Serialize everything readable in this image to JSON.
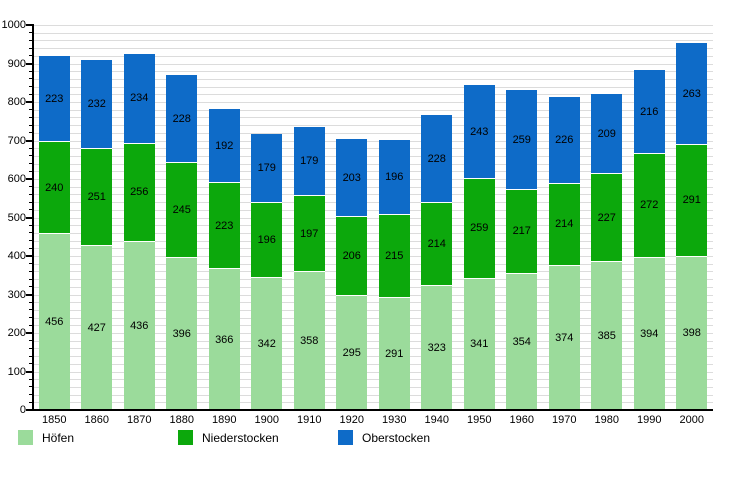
{
  "chart_data": {
    "type": "bar",
    "stacked": true,
    "title": "",
    "xlabel": "",
    "ylabel": "",
    "categories": [
      "1850",
      "1860",
      "1870",
      "1880",
      "1890",
      "1900",
      "1910",
      "1920",
      "1930",
      "1940",
      "1950",
      "1960",
      "1970",
      "1980",
      "1990",
      "2000"
    ],
    "series": [
      {
        "name": "Höfen",
        "color": "#9bdb9b",
        "values": [
          456,
          427,
          436,
          396,
          366,
          342,
          358,
          295,
          291,
          323,
          341,
          354,
          374,
          385,
          394,
          398
        ]
      },
      {
        "name": "Niederstocken",
        "color": "#0ca80c",
        "values": [
          240,
          251,
          256,
          245,
          223,
          196,
          197,
          206,
          215,
          214,
          259,
          217,
          214,
          227,
          272,
          291
        ]
      },
      {
        "name": "Oberstocken",
        "color": "#0e6bc8",
        "values": [
          223,
          232,
          234,
          228,
          192,
          179,
          179,
          203,
          196,
          228,
          243,
          259,
          226,
          209,
          216,
          263
        ]
      }
    ],
    "ylim": [
      0,
      1000
    ],
    "y_major_tick_step": 100,
    "y_minor_tick_step": 20,
    "grid": true,
    "grid_step": 20,
    "value_labels": true,
    "legend_position": "bottom"
  },
  "colors": {
    "grid": "#dcdcdc",
    "axis": "#000000",
    "text": "#000000",
    "background": "#ffffff"
  }
}
